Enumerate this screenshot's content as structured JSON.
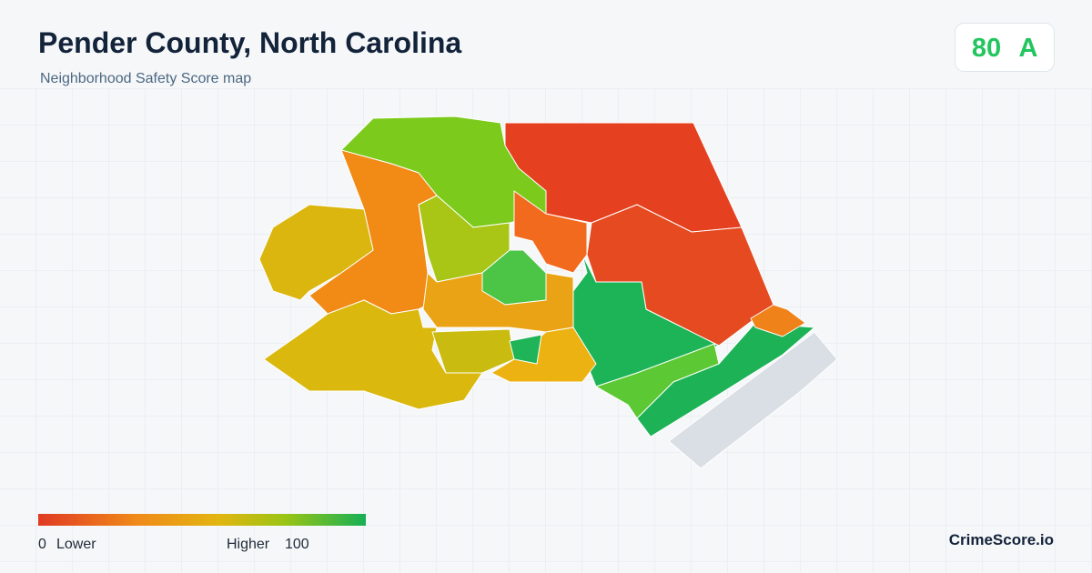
{
  "header": {
    "title": "Pender County, North Carolina",
    "subtitle": "Neighborhood Safety Score map"
  },
  "score": {
    "value": 80,
    "grade": "A"
  },
  "legend": {
    "min": 0,
    "min_label": "Lower",
    "max_label": "Higher",
    "max": 100
  },
  "footer": {
    "brand": "CrimeScore.io"
  }
}
